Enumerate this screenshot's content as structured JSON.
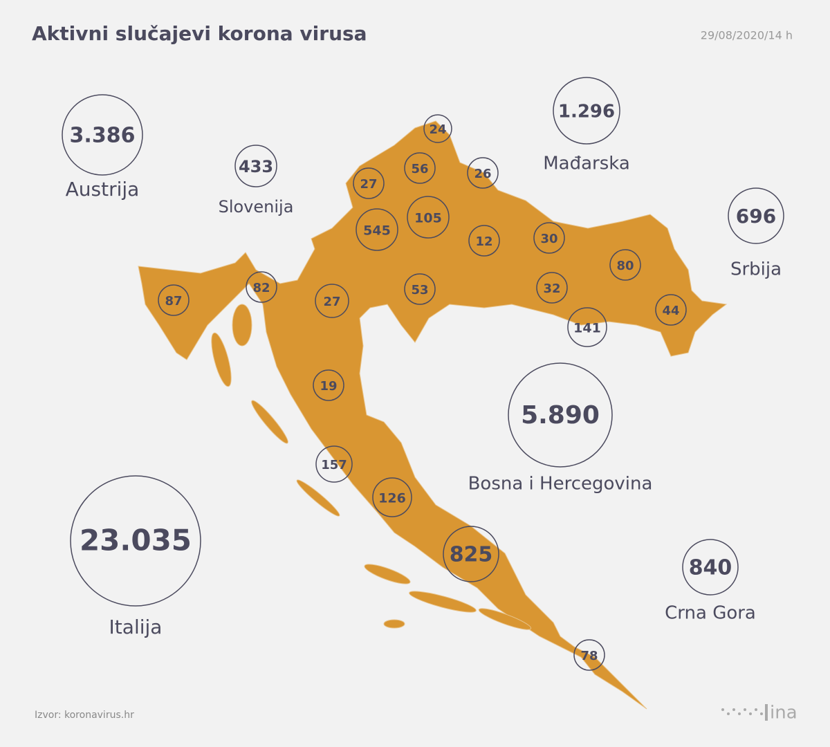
{
  "title": "Aktivni slučajevi korona virusa",
  "date": "29/08/2020/14 h",
  "source": "Izvor: koronavirus.hr",
  "logo": "ina",
  "countries": [
    {
      "name": "Austrija",
      "value": "3.386"
    },
    {
      "name": "Slovenija",
      "value": "433"
    },
    {
      "name": "Mađarska",
      "value": "1.296"
    },
    {
      "name": "Srbija",
      "value": "696"
    },
    {
      "name": "Bosna i Hercegovina",
      "value": "5.890"
    },
    {
      "name": "Italija",
      "value": "23.035"
    },
    {
      "name": "Crna Gora",
      "value": "840"
    }
  ],
  "counties": [
    "24",
    "56",
    "27",
    "26",
    "545",
    "105",
    "12",
    "30",
    "80",
    "87",
    "82",
    "27",
    "53",
    "32",
    "44",
    "141",
    "19",
    "157",
    "126",
    "825",
    "78"
  ]
}
